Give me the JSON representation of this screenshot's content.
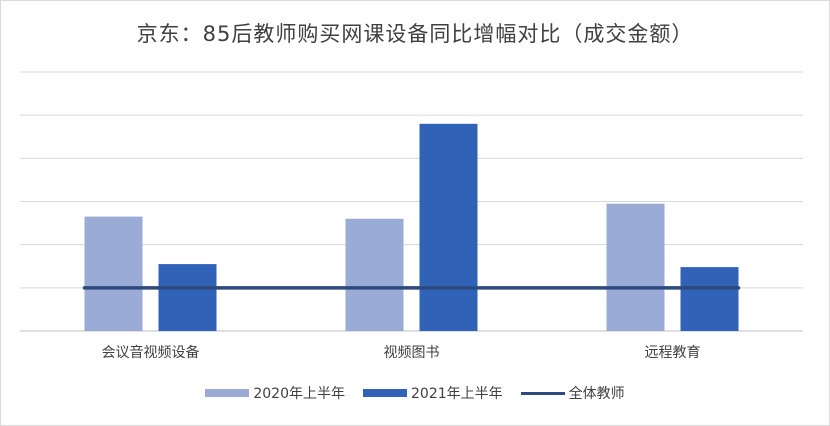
{
  "chart_data": {
    "type": "bar",
    "title": "京东：85后教师购买网课设备同比增幅对比（成交金额）",
    "categories": [
      "会议音视频设备",
      "视频图书",
      "远程教育"
    ],
    "ylim": [
      0,
      6
    ],
    "grid": true,
    "legend_position": "bottom",
    "series": [
      {
        "name": "2020年上半年",
        "type": "bar",
        "color": "#9aacd6",
        "values": [
          2.65,
          2.6,
          2.95
        ]
      },
      {
        "name": "2021年上半年",
        "type": "bar",
        "color": "#3063b8",
        "values": [
          1.55,
          4.8,
          1.48
        ]
      },
      {
        "name": "全体教师",
        "type": "line",
        "color": "#2d4a7f",
        "values": [
          1.0,
          1.0,
          1.0
        ]
      }
    ]
  }
}
